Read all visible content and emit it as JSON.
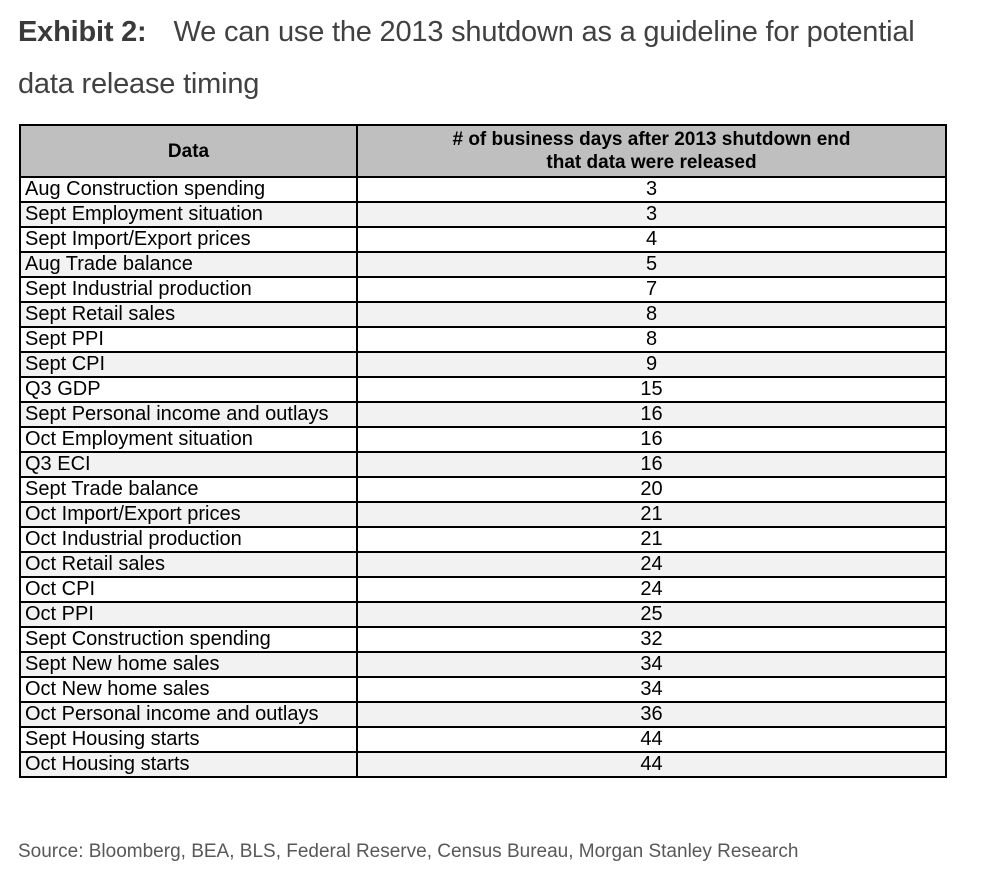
{
  "title": {
    "label": "Exhibit 2:",
    "text": "We can use the 2013 shutdown as a guideline for potential data release timing"
  },
  "table": {
    "header": {
      "col1": "Data",
      "col2_line1": "# of business days after 2013 shutdown end",
      "col2_line2": "that data were released"
    },
    "rows": [
      {
        "data": "Aug Construction spending",
        "days": "3"
      },
      {
        "data": "Sept Employment situation",
        "days": "3"
      },
      {
        "data": "Sept Import/Export prices",
        "days": "4"
      },
      {
        "data": "Aug Trade balance",
        "days": "5"
      },
      {
        "data": "Sept Industrial production",
        "days": "7"
      },
      {
        "data": "Sept Retail sales",
        "days": "8"
      },
      {
        "data": "Sept PPI",
        "days": "8"
      },
      {
        "data": "Sept CPI",
        "days": "9"
      },
      {
        "data": "Q3 GDP",
        "days": "15"
      },
      {
        "data": "Sept Personal income and outlays",
        "days": "16"
      },
      {
        "data": "Oct Employment situation",
        "days": "16"
      },
      {
        "data": "Q3 ECI",
        "days": "16"
      },
      {
        "data": "Sept Trade balance",
        "days": "20"
      },
      {
        "data": "Oct Import/Export prices",
        "days": "21"
      },
      {
        "data": "Oct Industrial production",
        "days": "21"
      },
      {
        "data": "Oct Retail sales",
        "days": "24"
      },
      {
        "data": "Oct CPI",
        "days": "24"
      },
      {
        "data": "Oct PPI",
        "days": "25"
      },
      {
        "data": "Sept Construction spending",
        "days": "32"
      },
      {
        "data": "Sept New home sales",
        "days": "34"
      },
      {
        "data": "Oct New home sales",
        "days": "34"
      },
      {
        "data": "Oct Personal income and outlays",
        "days": "36"
      },
      {
        "data": "Sept Housing starts",
        "days": "44"
      },
      {
        "data": "Oct Housing starts",
        "days": "44"
      }
    ]
  },
  "source": "Source: Bloomberg, BEA, BLS, Federal Reserve, Census Bureau, Morgan Stanley Research",
  "colors": {
    "header_bg": "#bfbfbf",
    "alt_row_bg": "#f2f2f2",
    "border": "#000000",
    "title_text": "#414042",
    "title_label": "#3a3a3c",
    "source_text": "#58585a"
  }
}
